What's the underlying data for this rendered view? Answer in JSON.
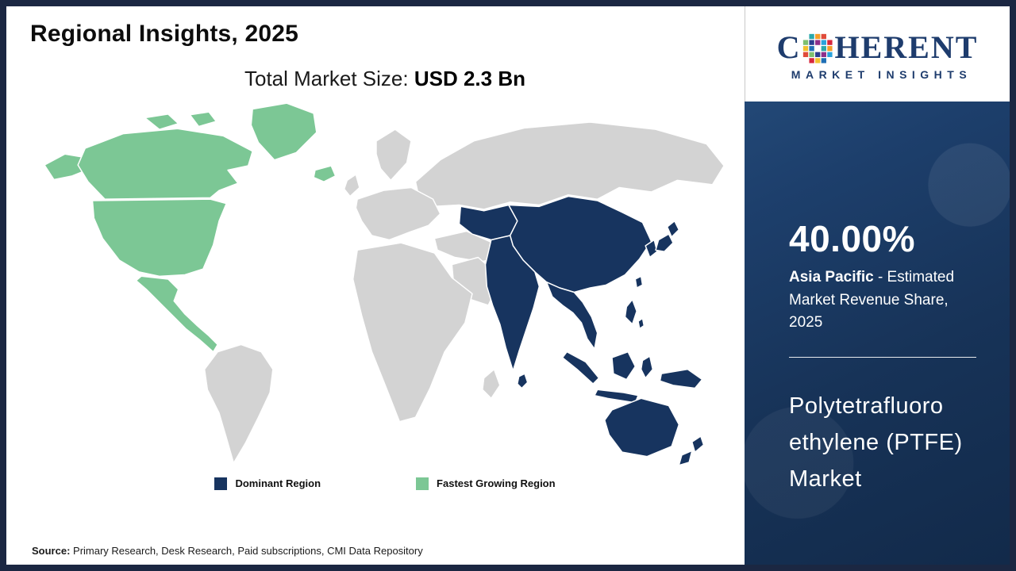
{
  "header": {
    "title": "Regional Insights, 2025",
    "market_size_label": "Total Market Size: ",
    "market_size_value": "USD 2.3 Bn"
  },
  "legend": {
    "dominant_label": "Dominant Region",
    "fastest_label": "Fastest Growing Region"
  },
  "footer": {
    "source_label": "Source:",
    "source_text": " Primary Research, Desk Research, Paid subscriptions, CMI Data Repository"
  },
  "sidebar": {
    "stat_value": "40.00%",
    "stat_region": "Asia Pacific",
    "stat_desc": " - Estimated Market Revenue Share, 2025",
    "market_name": "Polytetrafluoro ethylene (PTFE) Market"
  },
  "logo": {
    "first_letter": "C",
    "rest": "HERENT",
    "subtitle": "MARKET INSIGHTS",
    "mosaic_colors": [
      "#29a8ab",
      "#f59e2a",
      "#e04b3a",
      "#7fc06f",
      "#2c3e8f",
      "#8e2f8a",
      "#2aa3dc",
      "#d7263d",
      "#f2c12e",
      "#1f6fb5"
    ]
  },
  "colors": {
    "dominant": "#17345F",
    "fastest_growing": "#7CC795",
    "other_land": "#D3D3D3",
    "sidebar_navy": "#1B3A63"
  },
  "chart_data": {
    "type": "choropleth_map",
    "title": "Regional Insights, 2025",
    "subject": "Polytetrafluoroethylene (PTFE) Market",
    "total_market_size": "USD 2.3 Bn",
    "regions": [
      {
        "name": "Asia Pacific",
        "role": "Dominant Region",
        "estimated_market_revenue_share_2025": "40.00%",
        "color": "#17345F"
      },
      {
        "name": "North America",
        "role": "Fastest Growing Region",
        "color": "#7CC795"
      },
      {
        "name": "Rest of World",
        "role": "Other",
        "color": "#D3D3D3"
      }
    ],
    "legend": [
      "Dominant Region",
      "Fastest Growing Region"
    ],
    "legend_position": "bottom-center"
  }
}
